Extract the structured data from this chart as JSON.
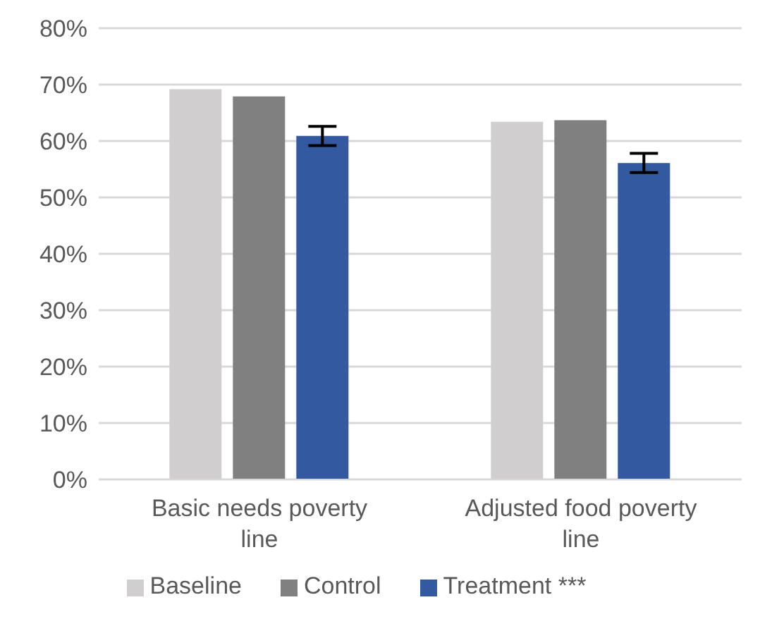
{
  "chart_data": {
    "type": "bar",
    "categories": [
      "Basic needs poverty line",
      "Adjusted food poverty line"
    ],
    "series": [
      {
        "name": "Baseline",
        "color": "#d0cece",
        "values": [
          69.2,
          63.4
        ]
      },
      {
        "name": "Control",
        "color": "#808080",
        "values": [
          67.9,
          63.7
        ]
      },
      {
        "name": "Treatment ***",
        "color": "#335aa1",
        "values": [
          60.9,
          56.1
        ],
        "errors": [
          1.7,
          1.7
        ]
      }
    ],
    "ylim": [
      0,
      80
    ],
    "yticks": [
      {
        "value": 0,
        "label": "0%"
      },
      {
        "value": 10,
        "label": "10%"
      },
      {
        "value": 20,
        "label": "20%"
      },
      {
        "value": 30,
        "label": "30%"
      },
      {
        "value": 40,
        "label": "40%"
      },
      {
        "value": 50,
        "label": "50%"
      },
      {
        "value": 60,
        "label": "60%"
      },
      {
        "value": 70,
        "label": "70%"
      },
      {
        "value": 80,
        "label": "80%"
      }
    ],
    "grid": "y",
    "legend": "bottom"
  }
}
